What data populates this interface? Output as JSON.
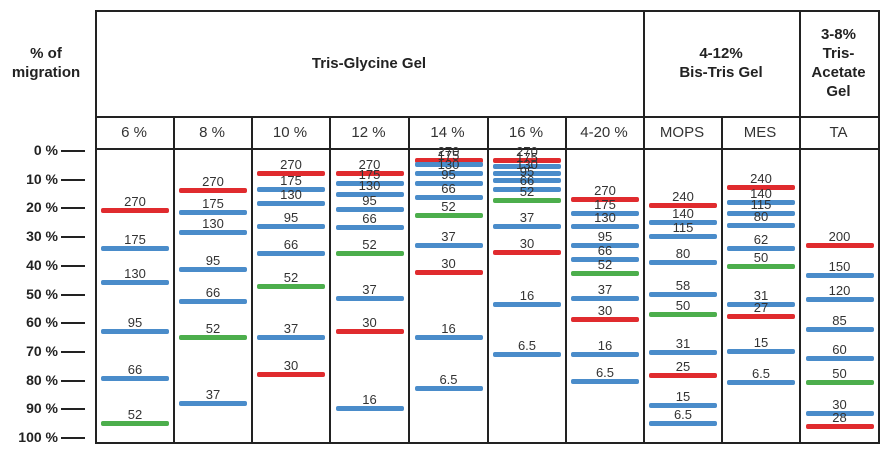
{
  "axis": {
    "title": "% of\nmigration",
    "ticks": [
      "0 %",
      "10 %",
      "20 %",
      "30 %",
      "40 %",
      "50 %",
      "60 %",
      "70 %",
      "80 %",
      "90 %",
      "100 %"
    ]
  },
  "groups": [
    {
      "name": "Tris-Glycine Gel",
      "span": 7
    },
    {
      "name": "4-12%\nBis-Tris Gel",
      "span": 2
    },
    {
      "name": "3-8%\nTris-\nAcetate\nGel",
      "span": 1
    }
  ],
  "colors": {
    "blue": "#4a8cca",
    "red": "#e02b2e",
    "green": "#4cae4c",
    "grid": "#222222"
  },
  "chart_data": {
    "type": "table",
    "title": "% of migration",
    "ylabel": "% of migration",
    "ylim": [
      0,
      100
    ],
    "lanes": [
      {
        "label": "6 %",
        "bands": [
          {
            "mw": "270",
            "pos": 21,
            "color": "red"
          },
          {
            "mw": "175",
            "pos": 34,
            "color": "blue"
          },
          {
            "mw": "130",
            "pos": 46,
            "color": "blue"
          },
          {
            "mw": "95",
            "pos": 63,
            "color": "blue"
          },
          {
            "mw": "66",
            "pos": 79.5,
            "color": "blue"
          },
          {
            "mw": "52",
            "pos": 95,
            "color": "green"
          }
        ]
      },
      {
        "label": "8 %",
        "bands": [
          {
            "mw": "270",
            "pos": 14,
            "color": "red"
          },
          {
            "mw": "175",
            "pos": 21.5,
            "color": "blue"
          },
          {
            "mw": "130",
            "pos": 28.5,
            "color": "blue"
          },
          {
            "mw": "95",
            "pos": 41.5,
            "color": "blue"
          },
          {
            "mw": "66",
            "pos": 52.5,
            "color": "blue"
          },
          {
            "mw": "52",
            "pos": 65,
            "color": "green"
          },
          {
            "mw": "37",
            "pos": 88,
            "color": "blue"
          }
        ]
      },
      {
        "label": "10 %",
        "bands": [
          {
            "mw": "270",
            "pos": 8,
            "color": "red"
          },
          {
            "mw": "175",
            "pos": 13.5,
            "color": "blue"
          },
          {
            "mw": "130",
            "pos": 18.5,
            "color": "blue"
          },
          {
            "mw": "95",
            "pos": 26.5,
            "color": "blue"
          },
          {
            "mw": "66",
            "pos": 36,
            "color": "blue"
          },
          {
            "mw": "52",
            "pos": 47.5,
            "color": "green"
          },
          {
            "mw": "37",
            "pos": 65,
            "color": "blue"
          },
          {
            "mw": "30",
            "pos": 78,
            "color": "red"
          }
        ]
      },
      {
        "label": "12 %",
        "bands": [
          {
            "mw": "270",
            "pos": 8,
            "color": "red"
          },
          {
            "mw": "175",
            "pos": 11.5,
            "color": "blue"
          },
          {
            "mw": "130",
            "pos": 15.5,
            "color": "blue"
          },
          {
            "mw": "95",
            "pos": 20.5,
            "color": "blue"
          },
          {
            "mw": "66",
            "pos": 27,
            "color": "blue"
          },
          {
            "mw": "52",
            "pos": 36,
            "color": "green"
          },
          {
            "mw": "37",
            "pos": 51.5,
            "color": "blue"
          },
          {
            "mw": "30",
            "pos": 63,
            "color": "red"
          },
          {
            "mw": "16",
            "pos": 90,
            "color": "blue"
          }
        ]
      },
      {
        "label": "14 %",
        "bands": [
          {
            "mw": "270",
            "pos": 3.5,
            "color": "red"
          },
          {
            "mw": "175",
            "pos": 5,
            "color": "blue"
          },
          {
            "mw": "130",
            "pos": 8,
            "color": "blue"
          },
          {
            "mw": "95",
            "pos": 11.5,
            "color": "blue"
          },
          {
            "mw": "66",
            "pos": 16.5,
            "color": "blue"
          },
          {
            "mw": "52",
            "pos": 22.5,
            "color": "green"
          },
          {
            "mw": "37",
            "pos": 33,
            "color": "blue"
          },
          {
            "mw": "30",
            "pos": 42.5,
            "color": "red"
          },
          {
            "mw": "16",
            "pos": 65,
            "color": "blue"
          },
          {
            "mw": "6.5",
            "pos": 83,
            "color": "blue"
          }
        ]
      },
      {
        "label": "16 %",
        "bands": [
          {
            "mw": "270",
            "pos": 3.5,
            "color": "red"
          },
          {
            "mw": "175",
            "pos": 5.5,
            "color": "blue"
          },
          {
            "mw": "130",
            "pos": 8,
            "color": "blue"
          },
          {
            "mw": "95",
            "pos": 10.5,
            "color": "blue"
          },
          {
            "mw": "66",
            "pos": 13.5,
            "color": "blue"
          },
          {
            "mw": "52",
            "pos": 17.5,
            "color": "green"
          },
          {
            "mw": "37",
            "pos": 26.5,
            "color": "blue"
          },
          {
            "mw": "30",
            "pos": 35.5,
            "color": "red"
          },
          {
            "mw": "16",
            "pos": 53.5,
            "color": "blue"
          },
          {
            "mw": "6.5",
            "pos": 71,
            "color": "blue"
          }
        ]
      },
      {
        "label": "4-20 %",
        "bands": [
          {
            "mw": "270",
            "pos": 17,
            "color": "red"
          },
          {
            "mw": "175",
            "pos": 22,
            "color": "blue"
          },
          {
            "mw": "130",
            "pos": 26.5,
            "color": "blue"
          },
          {
            "mw": "95",
            "pos": 33,
            "color": "blue"
          },
          {
            "mw": "66",
            "pos": 38,
            "color": "blue"
          },
          {
            "mw": "52",
            "pos": 43,
            "color": "green"
          },
          {
            "mw": "37",
            "pos": 51.5,
            "color": "blue"
          },
          {
            "mw": "30",
            "pos": 59,
            "color": "red"
          },
          {
            "mw": "16",
            "pos": 71,
            "color": "blue"
          },
          {
            "mw": "6.5",
            "pos": 80.5,
            "color": "blue"
          }
        ]
      },
      {
        "label": "MOPS",
        "bands": [
          {
            "mw": "240",
            "pos": 19,
            "color": "red"
          },
          {
            "mw": "140",
            "pos": 25,
            "color": "blue"
          },
          {
            "mw": "115",
            "pos": 30,
            "color": "blue"
          },
          {
            "mw": "80",
            "pos": 39,
            "color": "blue"
          },
          {
            "mw": "58",
            "pos": 50,
            "color": "blue"
          },
          {
            "mw": "50",
            "pos": 57,
            "color": "green"
          },
          {
            "mw": "31",
            "pos": 70.5,
            "color": "blue"
          },
          {
            "mw": "25",
            "pos": 78.5,
            "color": "red"
          },
          {
            "mw": "15",
            "pos": 89,
            "color": "blue"
          },
          {
            "mw": "6.5",
            "pos": 95,
            "color": "blue"
          }
        ]
      },
      {
        "label": "MES",
        "bands": [
          {
            "mw": "240",
            "pos": 13,
            "color": "red"
          },
          {
            "mw": "140",
            "pos": 18,
            "color": "blue"
          },
          {
            "mw": "115",
            "pos": 22,
            "color": "blue"
          },
          {
            "mw": "80",
            "pos": 26,
            "color": "blue"
          },
          {
            "mw": "62",
            "pos": 34,
            "color": "blue"
          },
          {
            "mw": "50",
            "pos": 40.5,
            "color": "green"
          },
          {
            "mw": "31",
            "pos": 53.5,
            "color": "blue"
          },
          {
            "mw": "27",
            "pos": 58,
            "color": "red"
          },
          {
            "mw": "15",
            "pos": 70,
            "color": "blue"
          },
          {
            "mw": "6.5",
            "pos": 81,
            "color": "blue"
          }
        ]
      },
      {
        "label": "TA",
        "bands": [
          {
            "mw": "200",
            "pos": 33,
            "color": "red"
          },
          {
            "mw": "150",
            "pos": 43.5,
            "color": "blue"
          },
          {
            "mw": "120",
            "pos": 52,
            "color": "blue"
          },
          {
            "mw": "85",
            "pos": 62.5,
            "color": "blue"
          },
          {
            "mw": "60",
            "pos": 72.5,
            "color": "blue"
          },
          {
            "mw": "50",
            "pos": 81,
            "color": "green"
          },
          {
            "mw": "30",
            "pos": 91.5,
            "color": "blue"
          },
          {
            "mw": "28",
            "pos": 96,
            "color": "red"
          }
        ]
      }
    ]
  }
}
